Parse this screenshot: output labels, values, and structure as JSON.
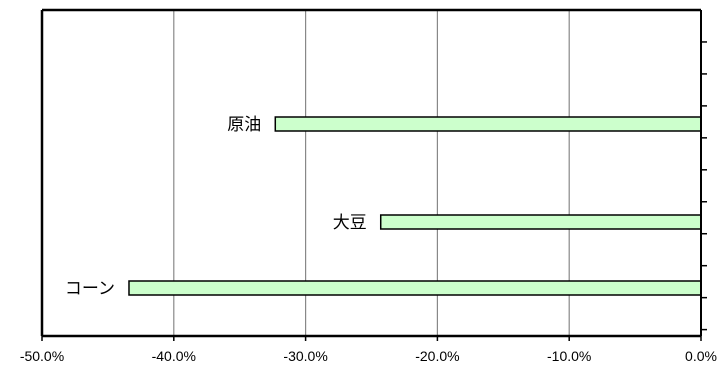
{
  "chart_data": {
    "type": "bar",
    "orientation": "horizontal",
    "categories": [
      "原油",
      "大豆",
      "コーン"
    ],
    "values": [
      -32.3,
      -24.3,
      -43.4
    ],
    "xlim": [
      -50,
      0
    ],
    "x_tick_values": [
      -50,
      -40,
      -30,
      -20,
      -10,
      0
    ],
    "x_tick_labels": [
      "-50.0%",
      "-40.0%",
      "-30.0%",
      "-20.0%",
      "-10.0%",
      "0.0%"
    ],
    "grid": "vertical",
    "legend": "none",
    "bar_color": "#ccffcc",
    "title": "",
    "xlabel": "",
    "ylabel": ""
  }
}
